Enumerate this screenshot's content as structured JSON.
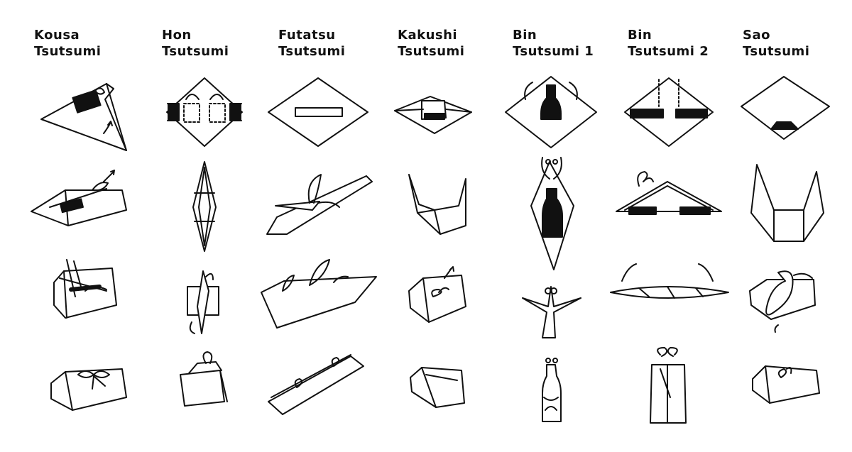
{
  "wraps": [
    {
      "id": "kousa",
      "title_line1": "Kousa",
      "title_line2": "Tsutsumi"
    },
    {
      "id": "hon",
      "title_line1": "Hon",
      "title_line2": "Tsutsumi"
    },
    {
      "id": "futatsu",
      "title_line1": "Futatsu",
      "title_line2": "Tsutsumi"
    },
    {
      "id": "kakushi",
      "title_line1": "Kakushi",
      "title_line2": "Tsutsumi"
    },
    {
      "id": "bin1",
      "title_line1": "Bin",
      "title_line2": "Tsutsumi 1"
    },
    {
      "id": "bin2",
      "title_line1": "Bin",
      "title_line2": "Tsutsumi 2"
    },
    {
      "id": "sao",
      "title_line1": "Sao",
      "title_line2": "Tsutsumi"
    }
  ],
  "colors": {
    "ink": "#111111",
    "background": "#ffffff"
  }
}
